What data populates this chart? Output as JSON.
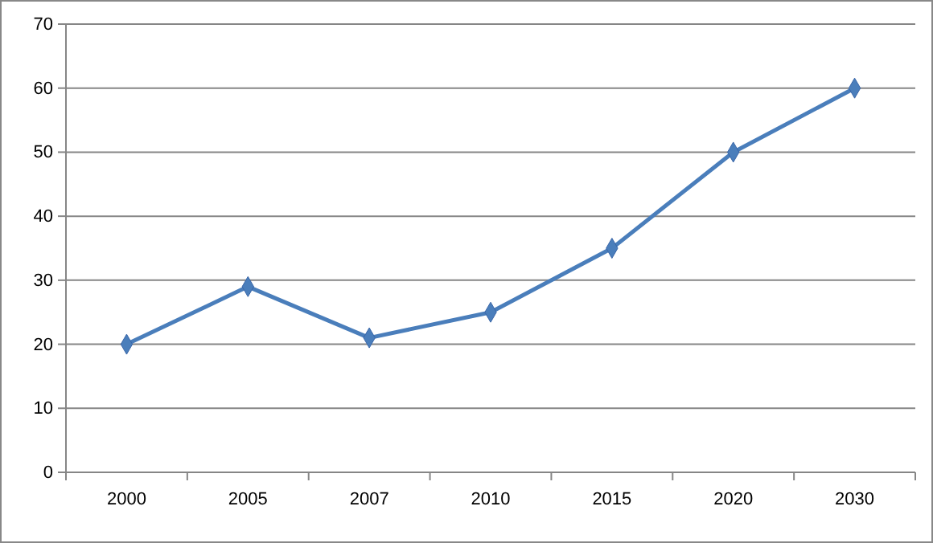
{
  "chart_data": {
    "type": "line",
    "categories": [
      "2000",
      "2005",
      "2007",
      "2010",
      "2015",
      "2020",
      "2030"
    ],
    "series": [
      {
        "color": "#4a7ebb",
        "values": [
          20,
          29,
          21,
          25,
          35,
          50,
          60
        ]
      }
    ],
    "ylim": [
      0,
      70
    ],
    "yticks": [
      0,
      10,
      20,
      30,
      40,
      50,
      60,
      70
    ],
    "grid": "y",
    "marker": "diamond",
    "line_style": "solid"
  }
}
